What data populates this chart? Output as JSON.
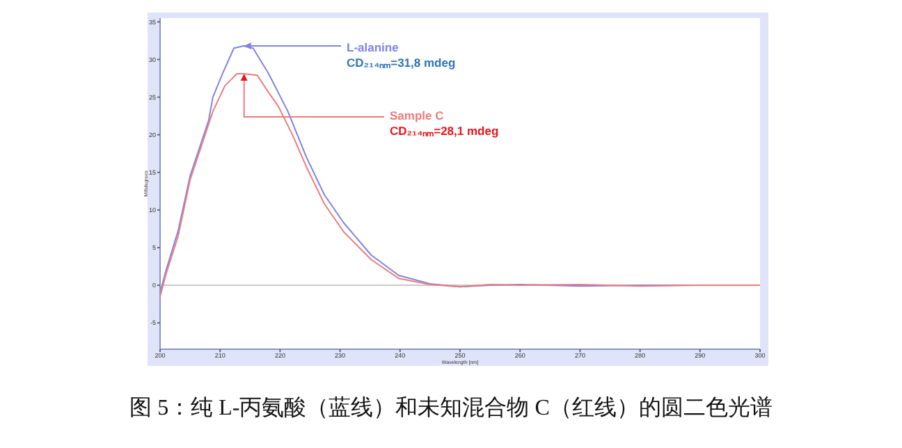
{
  "chart_data": {
    "type": "line",
    "xlabel": "Wavelength [nm]",
    "ylabel": "Millidegrees",
    "xlim": [
      200,
      300
    ],
    "xticks": [
      200,
      210,
      220,
      230,
      240,
      250,
      260,
      270,
      280,
      290,
      300
    ],
    "ylim": [
      -8.5,
      35.5
    ],
    "yticks": [
      -5,
      0,
      5,
      10,
      15,
      20,
      25,
      30,
      35
    ],
    "grid": false,
    "legend": false,
    "marker": "none",
    "line_style": "solid",
    "ref_lines": [
      {
        "axis": "y",
        "value": 0,
        "color": "#c8c8c8"
      }
    ],
    "series": [
      {
        "name": "L-alanine",
        "color": "#7f83e6",
        "x": [
          200,
          201,
          203,
          205,
          208.1,
          208.8,
          210.4,
          212.3,
          213.9,
          215.5,
          218.1,
          221.3,
          224.4,
          227.4,
          230.6,
          235.2,
          239.8,
          245,
          250,
          255,
          260,
          270,
          280,
          290,
          300
        ],
        "values": [
          -1,
          2,
          7.2,
          14.5,
          21.9,
          25,
          28.1,
          31.5,
          31.8,
          31.5,
          28.1,
          23.1,
          17,
          12,
          8.3,
          4,
          1.3,
          0.2,
          -0.2,
          0,
          0.1,
          -0.1,
          0,
          0,
          0
        ]
      },
      {
        "name": "Sample C",
        "color": "#ef7b7b",
        "x": [
          200,
          201,
          203,
          205,
          208.8,
          210.8,
          212.8,
          214,
          216.2,
          218.1,
          219.7,
          222,
          224.4,
          227.4,
          230.6,
          235.2,
          239.8,
          245,
          250,
          255,
          260,
          270,
          280,
          290,
          300
        ],
        "values": [
          -1.5,
          1.5,
          6.5,
          14,
          23.1,
          26.5,
          28.1,
          28.1,
          27.9,
          25.6,
          23.8,
          20.1,
          15.7,
          10.8,
          7.1,
          3.4,
          0.9,
          0.1,
          -0.2,
          0.1,
          0,
          0.1,
          -0.1,
          0,
          0
        ]
      }
    ],
    "annotations": [
      {
        "text": "CD₂₁₄ₙₘ=31,8 mdeg",
        "x": 214,
        "y": 31.8
      },
      {
        "text": "CD₂₁₄ₙₘ=28,1 mdeg",
        "x": 214,
        "y": 28.1
      },
      "图 5：纯 L-丙氨酸（蓝线）和未知混合物 C（红线）的圆二色光谱"
    ]
  }
}
